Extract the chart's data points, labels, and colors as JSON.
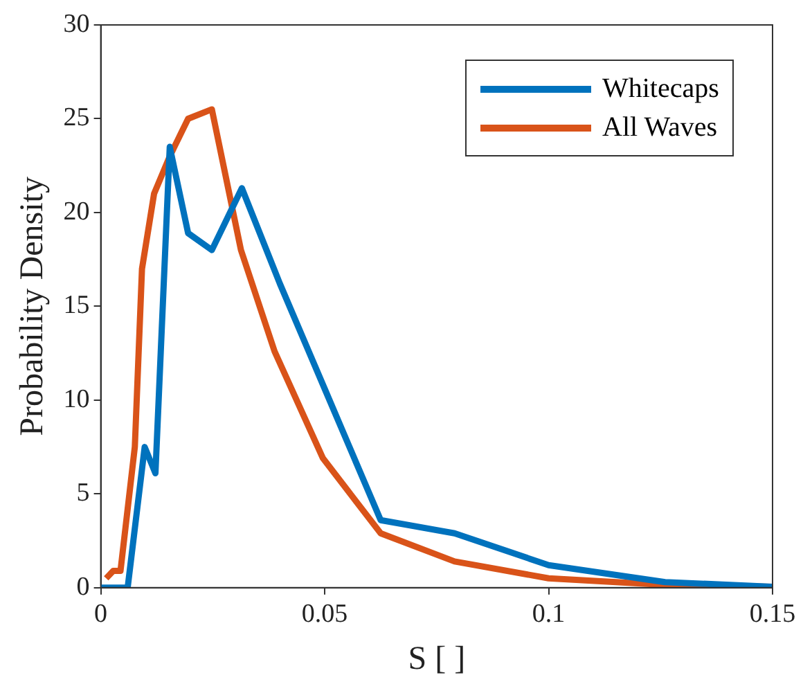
{
  "chart_data": {
    "type": "line",
    "xlabel": "S [ ]",
    "ylabel": "Probability Density",
    "xlim": [
      0,
      0.15
    ],
    "ylim": [
      0,
      30
    ],
    "xticks": [
      0,
      0.05,
      0.1,
      0.15
    ],
    "yticks": [
      0,
      5,
      10,
      15,
      20,
      25,
      30
    ],
    "grid": false,
    "legend": "top right",
    "marker": "none",
    "line_style": "solid",
    "series": [
      {
        "name": "Whitecaps",
        "color": "#0072bd",
        "x": [
          0,
          0.006,
          0.0098,
          0.0122,
          0.0154,
          0.0195,
          0.0248,
          0.0315,
          0.04,
          0.05,
          0.0625,
          0.079,
          0.1,
          0.126,
          0.15
        ],
        "values": [
          0,
          0,
          7.5,
          6.1,
          23.5,
          18.9,
          18,
          21.3,
          16.2,
          10.6,
          3.6,
          2.9,
          1.2,
          0.3,
          0.05
        ]
      },
      {
        "name": "All Waves",
        "color": "#d95319",
        "x": [
          0.0012,
          0.0028,
          0.0044,
          0.0076,
          0.0092,
          0.0119,
          0.0154,
          0.0195,
          0.0248,
          0.0313,
          0.0388,
          0.0496,
          0.0625,
          0.079,
          0.1,
          0.126,
          0.15
        ],
        "values": [
          0.5,
          0.9,
          0.9,
          7.5,
          17,
          21,
          23,
          25,
          25.5,
          18,
          12.6,
          6.9,
          2.9,
          1.4,
          0.5,
          0.15,
          0.05
        ]
      }
    ]
  }
}
